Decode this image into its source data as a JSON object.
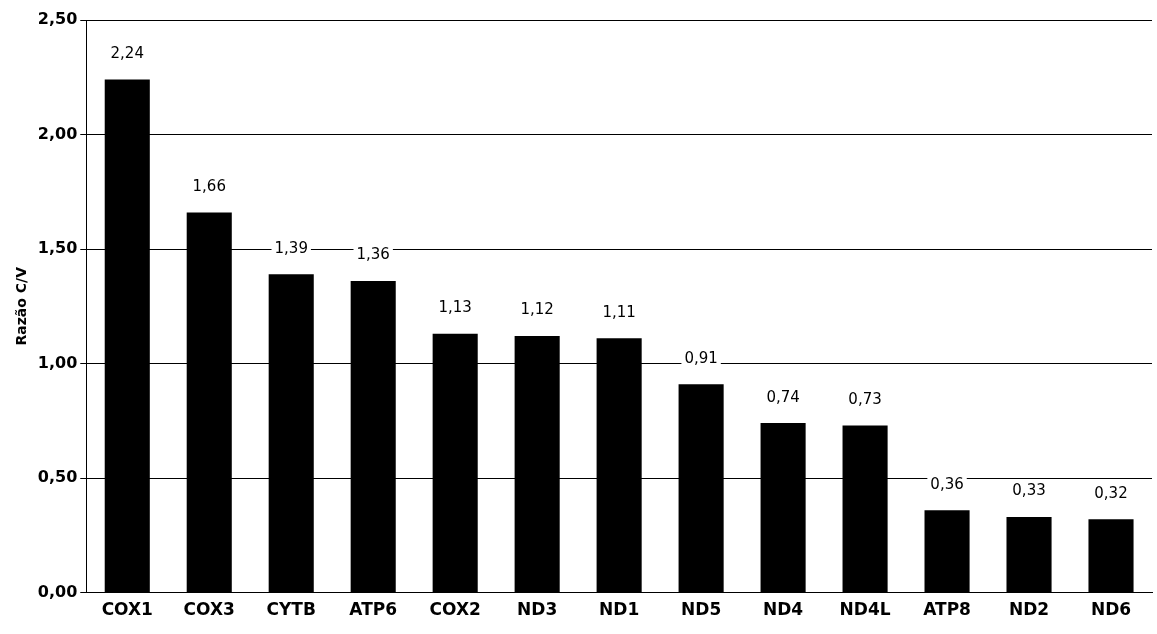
{
  "chart_data": {
    "type": "bar",
    "ylabel": "Razão C/V",
    "categories": [
      "COX1",
      "COX3",
      "CYTB",
      "ATP6",
      "COX2",
      "ND3",
      "ND1",
      "ND5",
      "ND4",
      "ND4L",
      "ATP8",
      "ND2",
      "ND6"
    ],
    "values": [
      2.24,
      1.66,
      1.39,
      1.36,
      1.13,
      1.12,
      1.11,
      0.91,
      0.74,
      0.73,
      0.36,
      0.33,
      0.32
    ],
    "value_labels": [
      "2,24",
      "1,66",
      "1,39",
      "1,36",
      "1,13",
      "1,12",
      "1,11",
      "0,91",
      "0,74",
      "0,73",
      "0,36",
      "0,33",
      "0,32"
    ],
    "color": "#000000",
    "ylim": [
      0,
      2.5
    ],
    "yticks": [
      {
        "value": 0,
        "label": "0,00"
      },
      {
        "value": 0.5,
        "label": "0,50"
      },
      {
        "value": 1,
        "label": "1,00"
      },
      {
        "value": 1.5,
        "label": "1,50"
      },
      {
        "value": 2,
        "label": "2,00"
      },
      {
        "value": 2.5,
        "label": "2,50"
      }
    ],
    "grid": "y",
    "legend": false
  }
}
